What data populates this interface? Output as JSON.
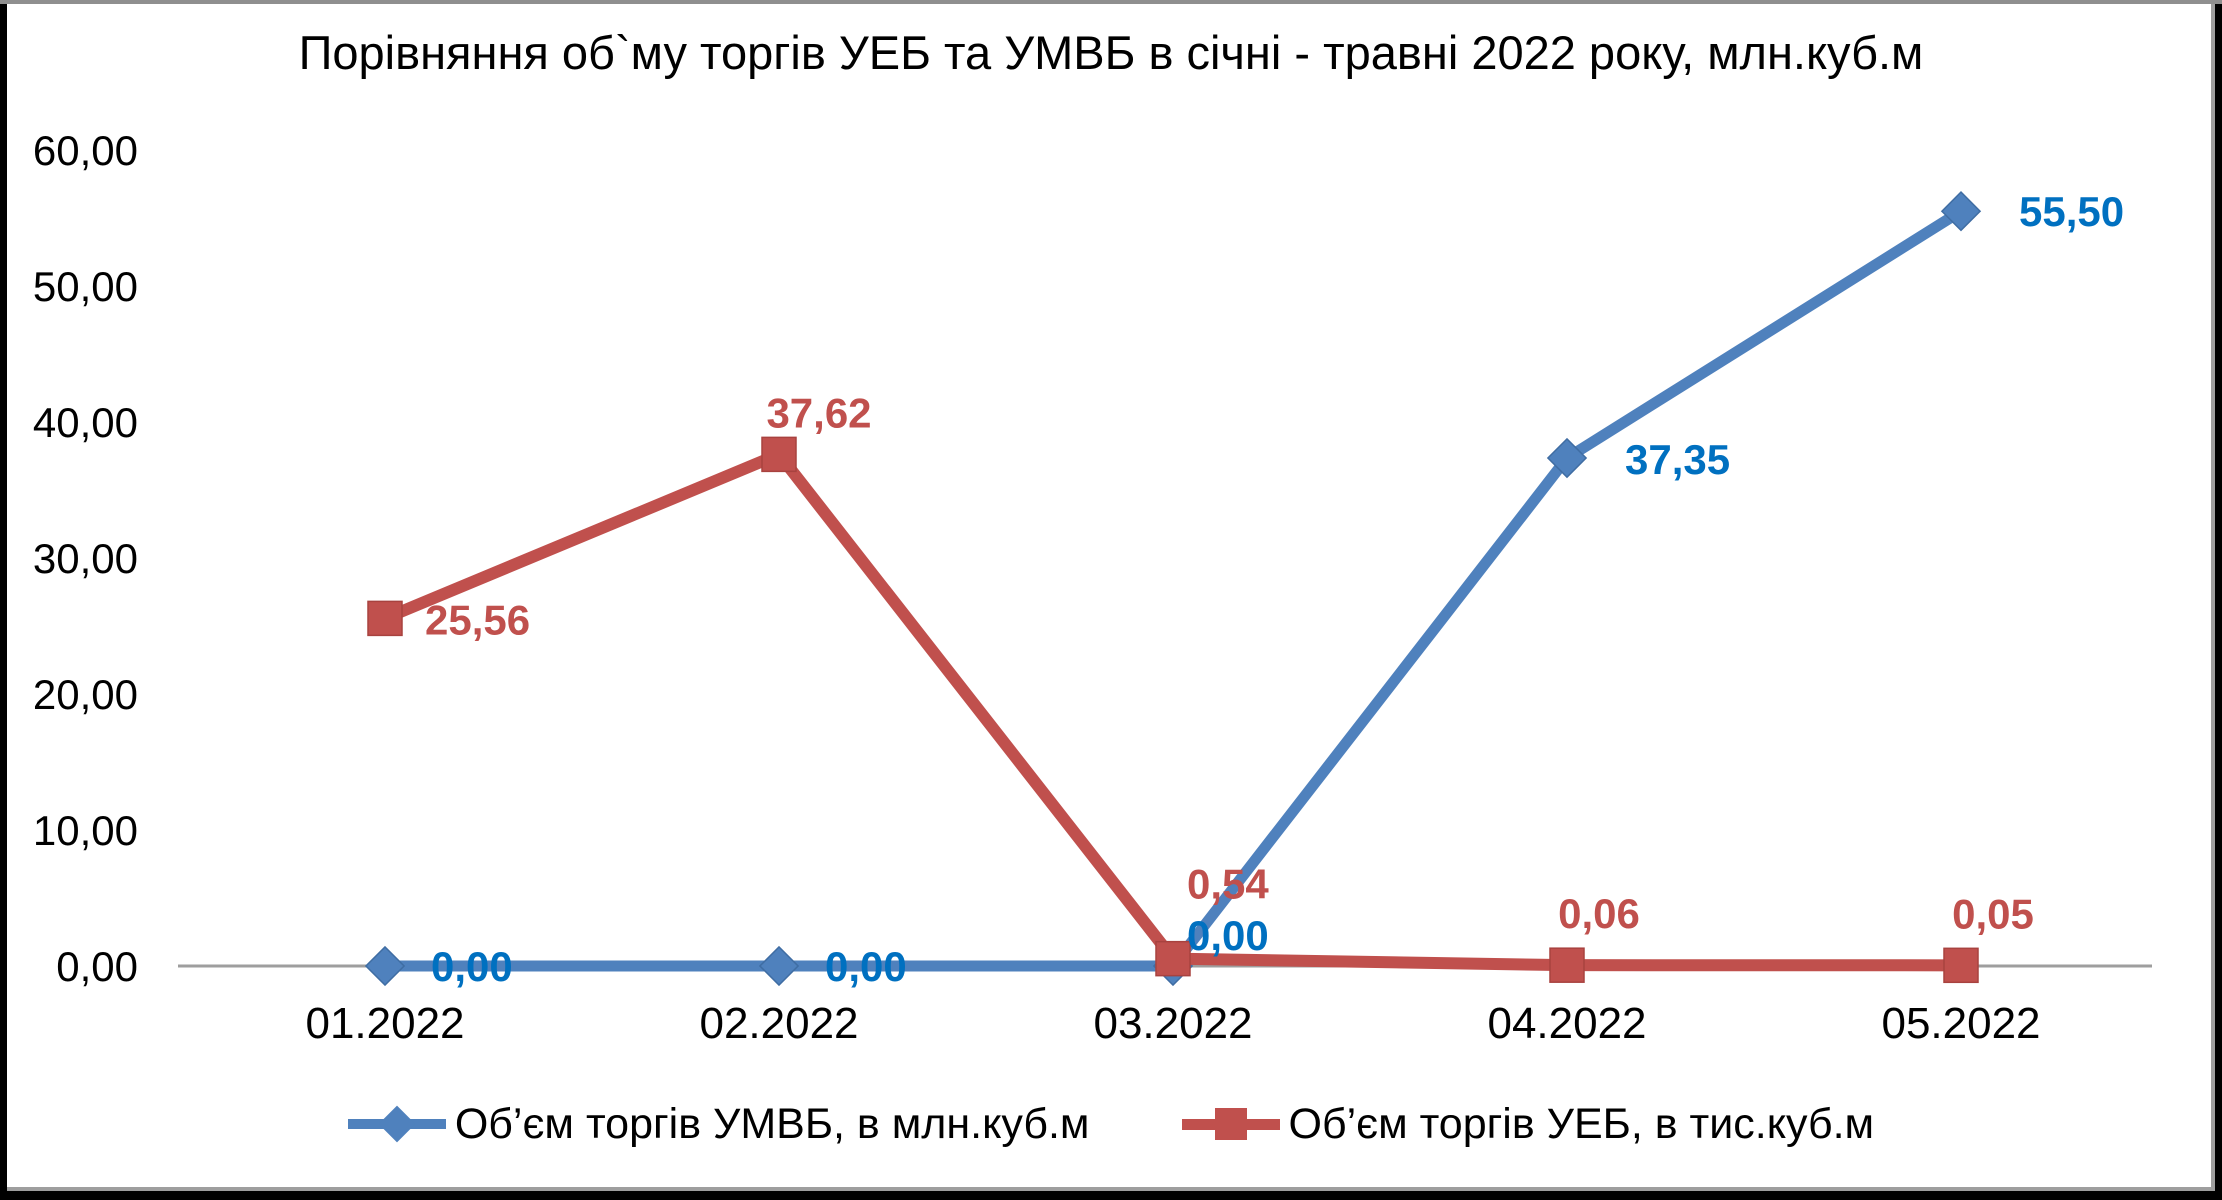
{
  "chart_data": {
    "type": "line",
    "title": "Порівняння об`му торгів УЕБ та УМВБ в січні - травні 2022 року, млн.куб.м",
    "categories": [
      "01.2022",
      "02.2022",
      "03.2022",
      "04.2022",
      "05.2022"
    ],
    "xlabel": "",
    "ylabel": "",
    "ylim": [
      0,
      60
    ],
    "grid": false,
    "legend_position": "bottom",
    "axis_color": "#9e9e9e",
    "text_color": "#000000",
    "yticks": [
      {
        "value": 0,
        "label": "0,00"
      },
      {
        "value": 10,
        "label": "10,00"
      },
      {
        "value": 20,
        "label": "20,00"
      },
      {
        "value": 30,
        "label": "30,00"
      },
      {
        "value": 40,
        "label": "40,00"
      },
      {
        "value": 50,
        "label": "50,00"
      },
      {
        "value": 60,
        "label": "60,00"
      }
    ],
    "series": [
      {
        "name": "Об’єм торгів УМВБ, в млн.куб.м",
        "unit": "млн.куб.м",
        "values": [
          0.0,
          0.0,
          0.0,
          37.35,
          55.5
        ],
        "labels": [
          "0,00",
          "0,00",
          "0,00",
          "37,35",
          "55,50"
        ],
        "color": "#4f81bd",
        "marker": "diamond",
        "label_color": "#0070c0"
      },
      {
        "name": "Об’єм торгів УЕБ, в тис.куб.м",
        "unit": "тис.куб.м",
        "values": [
          25.56,
          37.62,
          0.54,
          0.06,
          0.05
        ],
        "labels": [
          "25,56",
          "37,62",
          "0,54",
          "0,06",
          "0,05"
        ],
        "color": "#c0504d",
        "marker": "square",
        "label_color": "#c0504d"
      }
    ]
  }
}
